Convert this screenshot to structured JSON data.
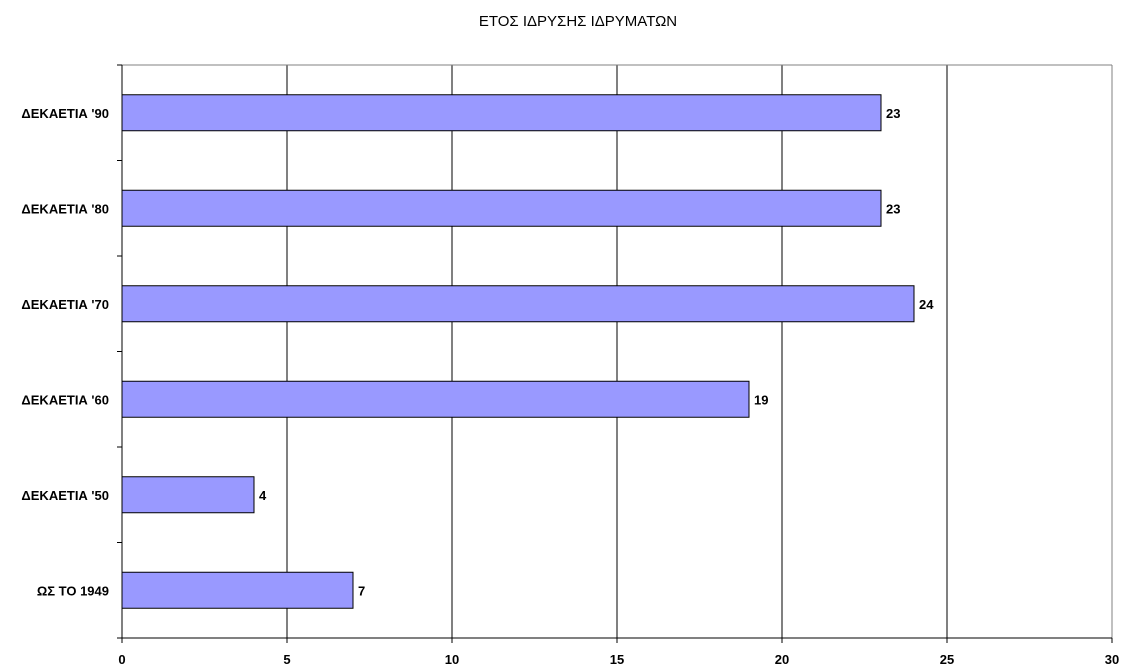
{
  "chart_data": {
    "type": "bar",
    "orientation": "horizontal",
    "title": "ΕΤΟΣ ΙΔΡΥΣΗΣ ΙΔΡΥΜΑΤΩΝ",
    "categories": [
      "ΩΣ ΤΟ 1949",
      "ΔΕΚΑΕΤΙΑ '50",
      "ΔΕΚΑΕΤΙΑ '60",
      "ΔΕΚΑΕΤΙΑ '70",
      "ΔΕΚΑΕΤΙΑ '80",
      "ΔΕΚΑΕΤΙΑ '90"
    ],
    "values": [
      7,
      4,
      19,
      24,
      23,
      23
    ],
    "xlim": [
      0,
      30
    ],
    "x_ticks": [
      0,
      5,
      10,
      15,
      20,
      25,
      30
    ],
    "grid": true,
    "data_labels": true,
    "colors": {
      "bar_fill": "#9999FF",
      "bar_stroke": "#000000",
      "grid": "#000000",
      "frame": "#808080"
    }
  }
}
